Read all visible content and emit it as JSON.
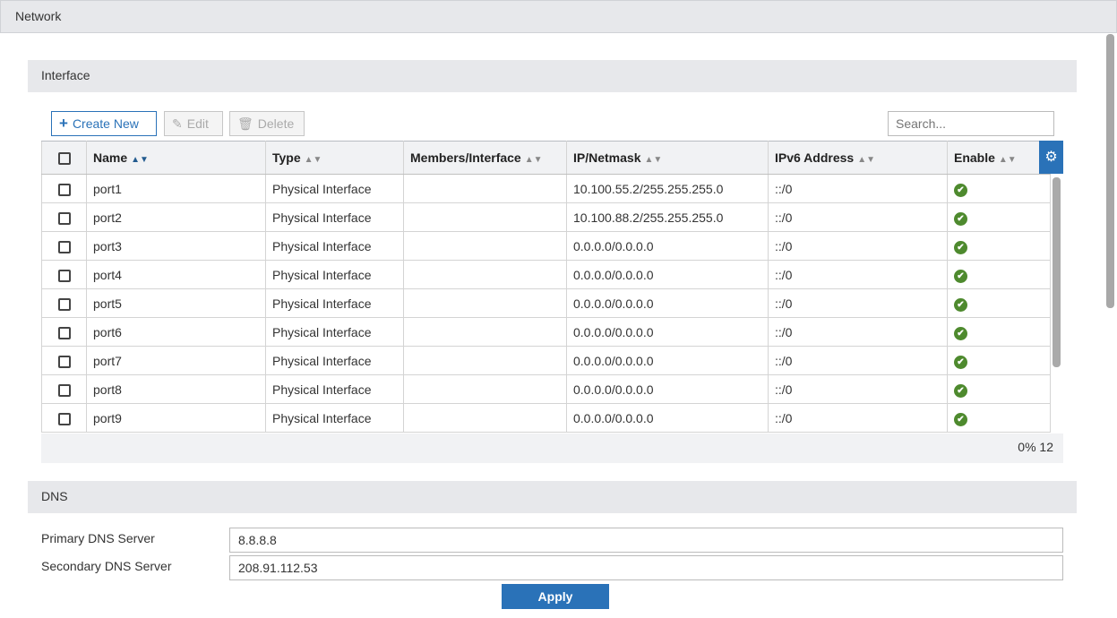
{
  "header": {
    "title": "Network"
  },
  "interface": {
    "title": "Interface",
    "toolbar": {
      "create": "Create New",
      "edit": "Edit",
      "delete": "Delete",
      "search_placeholder": "Search..."
    },
    "columns": [
      "Name",
      "Type",
      "Members/Interface",
      "IP/Netmask",
      "IPv6 Address",
      "Enable"
    ],
    "rows": [
      {
        "name": "port1",
        "type": "Physical Interface",
        "members": "",
        "ip": "10.100.55.2/255.255.255.0",
        "ipv6": "::/0",
        "enabled": true
      },
      {
        "name": "port2",
        "type": "Physical Interface",
        "members": "",
        "ip": "10.100.88.2/255.255.255.0",
        "ipv6": "::/0",
        "enabled": true
      },
      {
        "name": "port3",
        "type": "Physical Interface",
        "members": "",
        "ip": "0.0.0.0/0.0.0.0",
        "ipv6": "::/0",
        "enabled": true
      },
      {
        "name": "port4",
        "type": "Physical Interface",
        "members": "",
        "ip": "0.0.0.0/0.0.0.0",
        "ipv6": "::/0",
        "enabled": true
      },
      {
        "name": "port5",
        "type": "Physical Interface",
        "members": "",
        "ip": "0.0.0.0/0.0.0.0",
        "ipv6": "::/0",
        "enabled": true
      },
      {
        "name": "port6",
        "type": "Physical Interface",
        "members": "",
        "ip": "0.0.0.0/0.0.0.0",
        "ipv6": "::/0",
        "enabled": true
      },
      {
        "name": "port7",
        "type": "Physical Interface",
        "members": "",
        "ip": "0.0.0.0/0.0.0.0",
        "ipv6": "::/0",
        "enabled": true
      },
      {
        "name": "port8",
        "type": "Physical Interface",
        "members": "",
        "ip": "0.0.0.0/0.0.0.0",
        "ipv6": "::/0",
        "enabled": true
      },
      {
        "name": "port9",
        "type": "Physical Interface",
        "members": "",
        "ip": "0.0.0.0/0.0.0.0",
        "ipv6": "::/0",
        "enabled": true
      }
    ],
    "footer": {
      "percent": "0%",
      "count": "12"
    }
  },
  "dns": {
    "title": "DNS",
    "primary_label": "Primary DNS Server",
    "primary_value": "8.8.8.8",
    "secondary_label": "Secondary DNS Server",
    "secondary_value": "208.91.112.53",
    "apply": "Apply"
  },
  "colors": {
    "accent": "#2a72b8",
    "enabled": "#4e8a2e"
  }
}
